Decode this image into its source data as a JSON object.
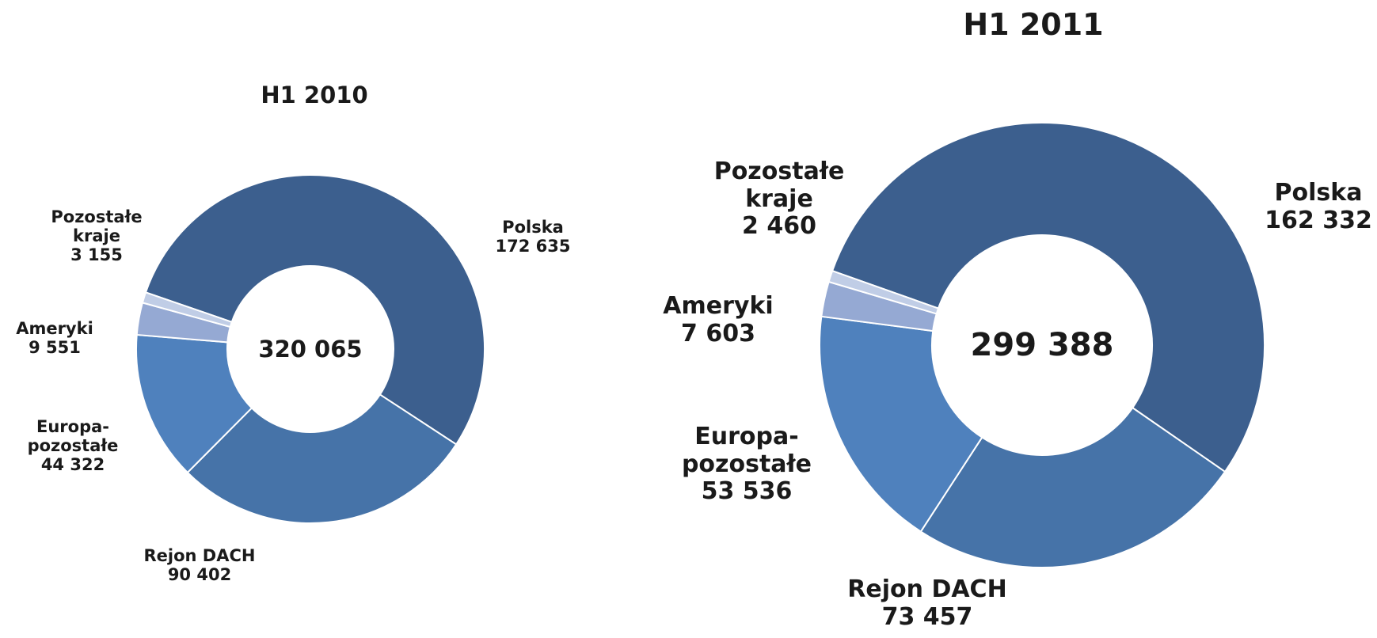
{
  "chart_data": [
    {
      "type": "donut",
      "title": "H1 2010",
      "center_label": "320 065",
      "categories": [
        "Polska",
        "Rejon DACH",
        "Europa-pozostałe",
        "Ameryki",
        "Pozostałe kraje"
      ],
      "values": [
        172635,
        90402,
        44322,
        9551,
        3155
      ],
      "value_labels": [
        "172 635",
        "90 402",
        "44 322",
        "9 551",
        "3 155"
      ],
      "colors": [
        "#3c5f8e",
        "#4673a8",
        "#4f81bd",
        "#95a9d3",
        "#c0cde6"
      ]
    },
    {
      "type": "donut",
      "title": "H1 2011",
      "center_label": "299 388",
      "categories": [
        "Polska",
        "Rejon DACH",
        "Europa-pozostałe",
        "Ameryki",
        "Pozostałe kraje"
      ],
      "values": [
        162332,
        73457,
        53536,
        7603,
        2460
      ],
      "value_labels": [
        "162 332",
        "73 457",
        "53 536",
        "7 603",
        "2 460"
      ],
      "colors": [
        "#3c5f8e",
        "#4673a8",
        "#4f81bd",
        "#95a9d3",
        "#c0cde6"
      ]
    }
  ]
}
